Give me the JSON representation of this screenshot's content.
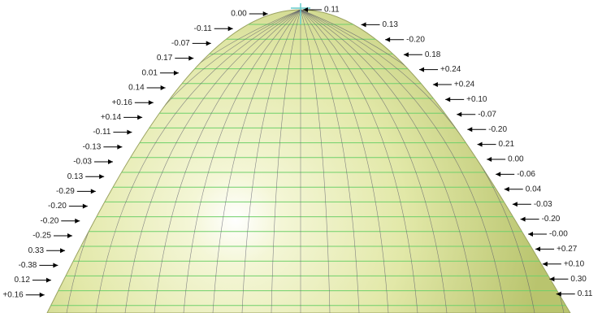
{
  "left_labels": [
    "0.00",
    "-0.11",
    "-0.07",
    "0.17",
    "0.01",
    "0.14",
    "+0.16",
    "+0.14",
    "-0.11",
    "-0.13",
    "-0.03",
    "0.13",
    "-0.29",
    "-0.20",
    "-0.20",
    "-0.25",
    "0.33",
    "-0.38",
    "0.12",
    "+0.16"
  ],
  "right_labels": [
    "0.11",
    "0.13",
    "-0.20",
    "0.18",
    "+0.24",
    "+0.24",
    "+0.10",
    "-0.07",
    "-0.20",
    "0.21",
    "0.00",
    "-0.06",
    "0.04",
    "-0.03",
    "-0.20",
    "-0.00",
    "+0.27",
    "+0.10",
    "0.30",
    "0.11"
  ]
}
